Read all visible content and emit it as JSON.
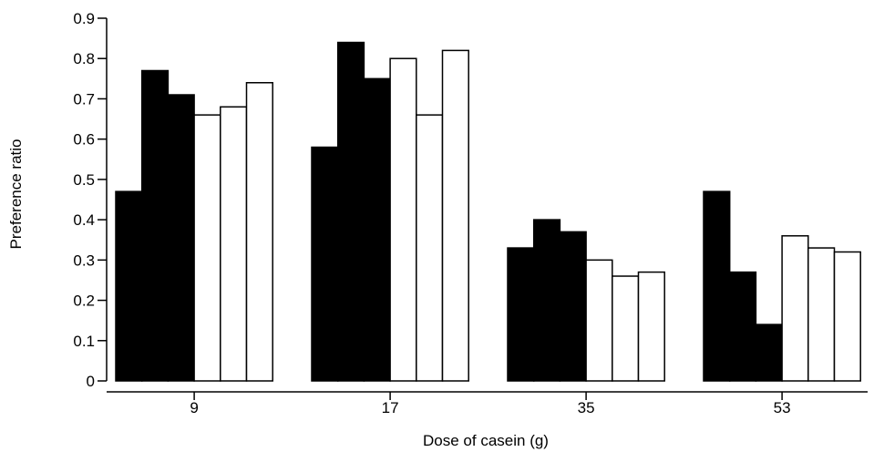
{
  "chart_data": {
    "type": "bar",
    "title": "",
    "xlabel": "Dose of casein (g)",
    "ylabel": "Preference ratio",
    "ylim": [
      0,
      0.9
    ],
    "yticks": [
      "0",
      "0.1",
      "0.2",
      "0.3",
      "0.4",
      "0.5",
      "0.6",
      "0.7",
      "0.8",
      "0.9"
    ],
    "grid": false,
    "legend": "none",
    "categories": [
      "9",
      "17",
      "35",
      "53"
    ],
    "series": [
      {
        "fill": "#000000",
        "values": [
          0.47,
          0.58,
          0.33,
          0.47
        ]
      },
      {
        "fill": "#000000",
        "values": [
          0.77,
          0.84,
          0.4,
          0.27
        ]
      },
      {
        "fill": "#000000",
        "values": [
          0.71,
          0.75,
          0.37,
          0.14
        ]
      },
      {
        "fill": "#ffffff",
        "values": [
          0.66,
          0.8,
          0.3,
          0.36
        ]
      },
      {
        "fill": "#ffffff",
        "values": [
          0.68,
          0.66,
          0.26,
          0.33
        ]
      },
      {
        "fill": "#ffffff",
        "values": [
          0.74,
          0.82,
          0.27,
          0.32
        ]
      }
    ]
  }
}
